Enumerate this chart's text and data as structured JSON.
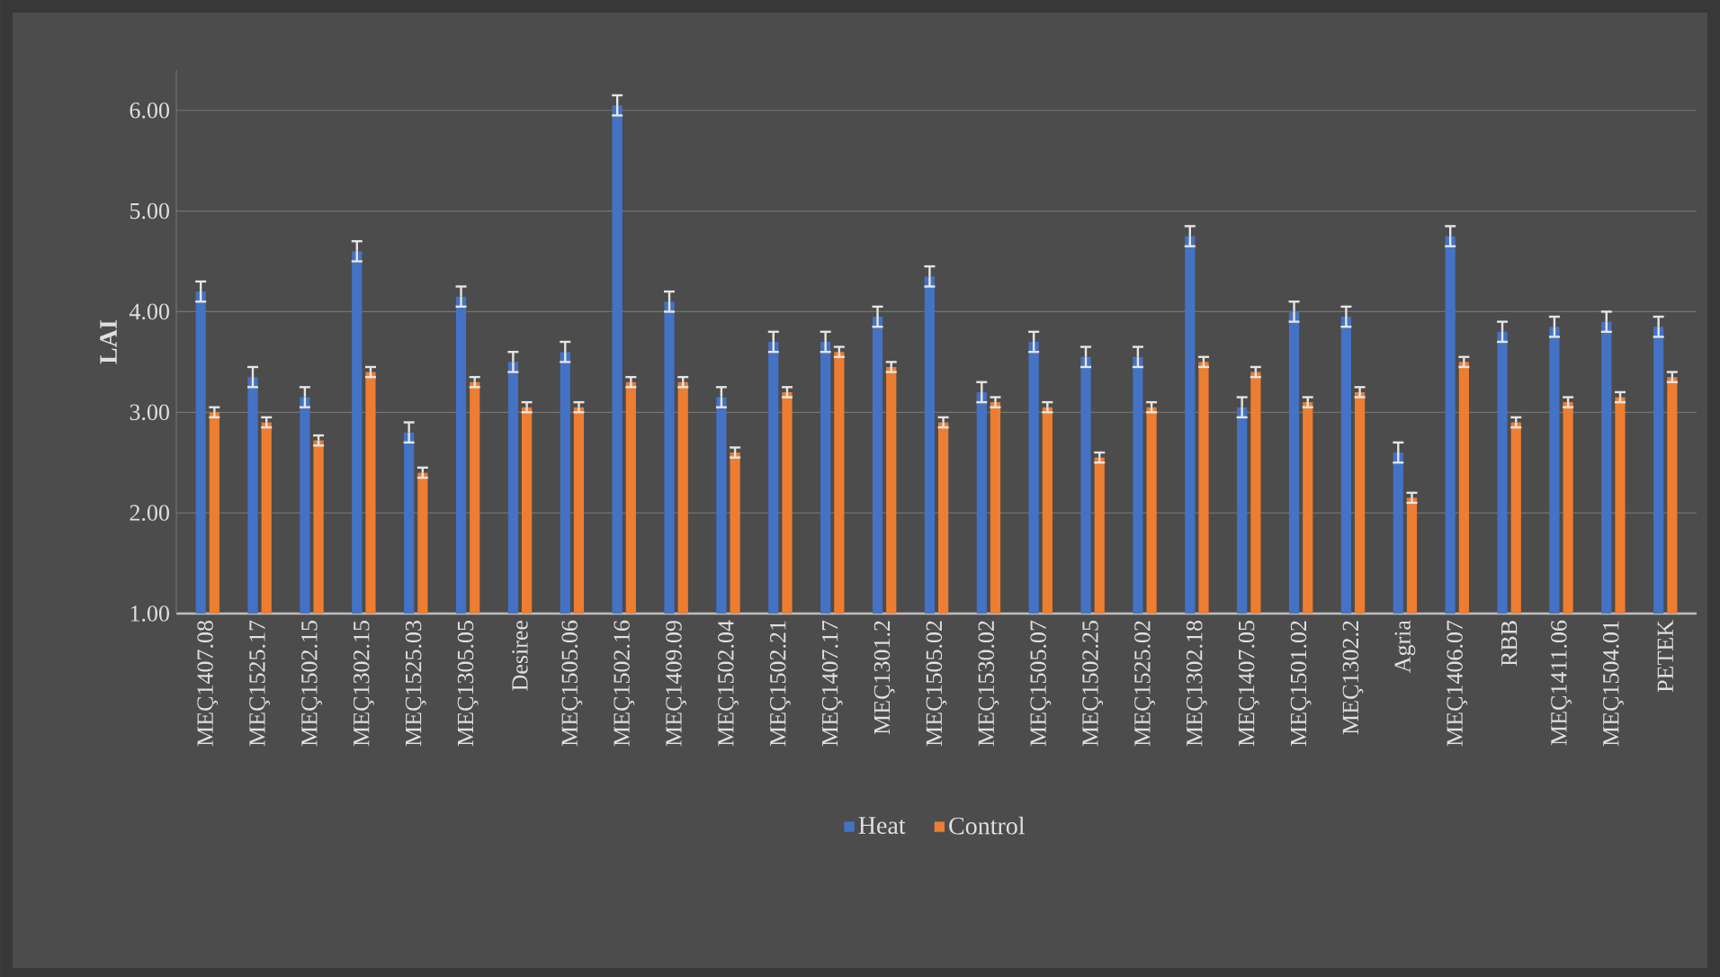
{
  "chart_data": {
    "type": "bar",
    "ylabel": "LAI",
    "categories": [
      "MEÇ1407.08",
      "MEÇ1525.17",
      "MEÇ1502.15",
      "MEÇ1302.15",
      "MEÇ1525.03",
      "MEÇ1305.05",
      "Desiree",
      "MEÇ1505.06",
      "MEÇ1502.16",
      "MEÇ1409.09",
      "MEÇ1502.04",
      "MEÇ1502.21",
      "MEÇ1407.17",
      "MEÇ1301.2",
      "MEÇ1505.02",
      "MEÇ1530.02",
      "MEÇ1505.07",
      "MEÇ1502.25",
      "MEÇ1525.02",
      "MEÇ1302.18",
      "MEÇ1407.05",
      "MEÇ1501.02",
      "MEÇ1302.2",
      "Agria",
      "MEÇ1406.07",
      "RBB",
      "MEÇ1411.06",
      "MEÇ1504.01",
      "PETEK"
    ],
    "series": [
      {
        "name": "Heat",
        "color": "#4472c4",
        "values": [
          4.2,
          3.35,
          3.15,
          4.6,
          2.8,
          4.15,
          3.5,
          3.6,
          6.05,
          4.1,
          3.15,
          3.7,
          3.7,
          3.95,
          4.35,
          3.2,
          3.7,
          3.55,
          3.55,
          4.75,
          3.05,
          4.0,
          3.95,
          2.6,
          4.75,
          3.8,
          3.85,
          3.9,
          3.85
        ],
        "errors": [
          0.1,
          0.1,
          0.1,
          0.1,
          0.1,
          0.1,
          0.1,
          0.1,
          0.1,
          0.1,
          0.1,
          0.1,
          0.1,
          0.1,
          0.1,
          0.1,
          0.1,
          0.1,
          0.1,
          0.1,
          0.1,
          0.1,
          0.1,
          0.1,
          0.1,
          0.1,
          0.1,
          0.1,
          0.1
        ]
      },
      {
        "name": "Control",
        "color": "#ed7d31",
        "values": [
          3.0,
          2.9,
          2.72,
          3.4,
          2.4,
          3.3,
          3.05,
          3.05,
          3.3,
          3.3,
          2.6,
          3.2,
          3.6,
          3.45,
          2.9,
          3.1,
          3.05,
          2.55,
          3.05,
          3.5,
          3.4,
          3.1,
          3.2,
          2.15,
          3.5,
          2.9,
          3.1,
          3.15,
          3.35
        ],
        "errors": [
          0.05,
          0.05,
          0.05,
          0.05,
          0.05,
          0.05,
          0.05,
          0.05,
          0.05,
          0.05,
          0.05,
          0.05,
          0.05,
          0.05,
          0.05,
          0.05,
          0.05,
          0.05,
          0.05,
          0.05,
          0.05,
          0.05,
          0.05,
          0.05,
          0.05,
          0.05,
          0.05,
          0.05,
          0.05
        ]
      }
    ],
    "ylim": [
      1,
      6.4
    ],
    "yticks": [
      {
        "value": 1,
        "label": "1.00"
      },
      {
        "value": 2,
        "label": "2.00"
      },
      {
        "value": 3,
        "label": "3.00"
      },
      {
        "value": 4,
        "label": "4.00"
      },
      {
        "value": 5,
        "label": "5.00"
      },
      {
        "value": 6,
        "label": "6.00"
      }
    ],
    "grid": "y",
    "legend": "bottom"
  }
}
